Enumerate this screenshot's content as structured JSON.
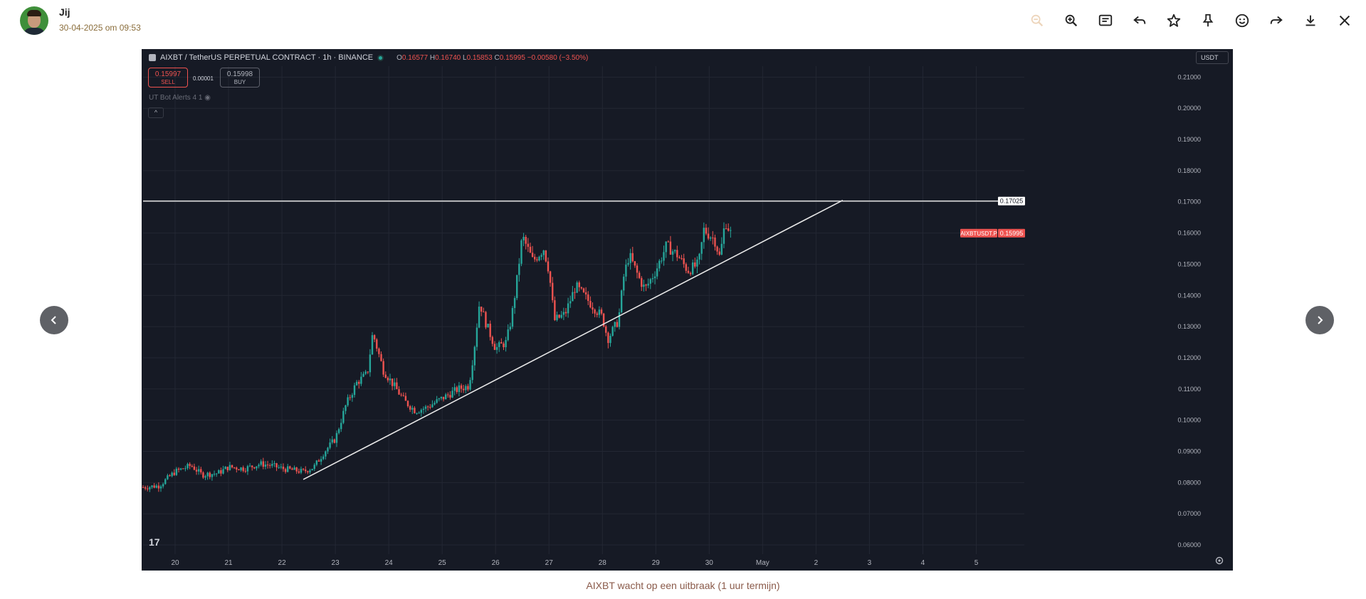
{
  "header": {
    "sender": "Jij",
    "timestamp": "30-04-2025 om 09:53"
  },
  "toolbar": {
    "icons": [
      "zoom-out-icon",
      "zoom-in-icon",
      "caption-icon",
      "reply-icon",
      "star-icon",
      "pin-icon",
      "emoji-icon",
      "forward-icon",
      "download-icon",
      "close-icon"
    ]
  },
  "caption": "AIXBT wacht op een uitbraak (1 uur termijn)",
  "tv": {
    "title": "AIXBT / TetherUS PERPETUAL CONTRACT · 1h · BINANCE",
    "ohlc": {
      "o_label": "O",
      "o": "0.16577",
      "h_label": "H",
      "h": "0.16740",
      "l_label": "L",
      "l": "0.15853",
      "c_label": "C",
      "c": "0.15995",
      "change": "−0.00580 (−3.50%)"
    },
    "sell_price": "0.15997",
    "sell_label": "SELL",
    "spread": "0.00001",
    "buy_price": "0.15998",
    "buy_label": "BUY",
    "indicator": "UT Bot Alerts 4 1",
    "currency": "USDT",
    "collapse": "^",
    "logo": "17"
  },
  "colors": {
    "up": "#26a69a",
    "down": "#ef5350",
    "background": "#161a25",
    "grid": "#232733",
    "drawing": "#e8e8e8"
  },
  "chart_data": {
    "type": "candlestick",
    "symbol": "AIXBTUSDT.P",
    "timeframe": "1h",
    "x_ticks": [
      "20",
      "21",
      "22",
      "23",
      "24",
      "25",
      "26",
      "27",
      "28",
      "29",
      "30",
      "May",
      "2",
      "3",
      "4",
      "5"
    ],
    "y_ticks": [
      "0.06000",
      "0.07000",
      "0.08000",
      "0.09000",
      "0.10000",
      "0.11000",
      "0.12000",
      "0.13000",
      "0.14000",
      "0.15000",
      "0.16000",
      "0.17000",
      "0.18000",
      "0.19000",
      "0.20000",
      "0.21000"
    ],
    "ylim": [
      0.0575,
      0.2135
    ],
    "x_range_days": [
      19.4,
      5.9
    ],
    "horizontal_line": {
      "value": 0.17025,
      "label": "0.17025"
    },
    "last_price": {
      "value": 0.15995,
      "label": "0.15995",
      "symbol_label": "AIXBTUSDT.P"
    },
    "trendline": [
      {
        "day": 22.4,
        "price": 0.081
      },
      {
        "day": 2.5,
        "price": 0.1705
      }
    ],
    "path_points": [
      [
        19.4,
        0.0785
      ],
      [
        19.7,
        0.079
      ],
      [
        20.0,
        0.0835
      ],
      [
        20.3,
        0.0855
      ],
      [
        20.5,
        0.0825
      ],
      [
        20.8,
        0.083
      ],
      [
        21.0,
        0.085
      ],
      [
        21.3,
        0.0845
      ],
      [
        21.6,
        0.086
      ],
      [
        21.8,
        0.0855
      ],
      [
        22.0,
        0.0845
      ],
      [
        22.2,
        0.084
      ],
      [
        22.4,
        0.0835
      ],
      [
        22.6,
        0.085
      ],
      [
        22.8,
        0.09
      ],
      [
        23.0,
        0.094
      ],
      [
        23.2,
        0.105
      ],
      [
        23.4,
        0.112
      ],
      [
        23.6,
        0.115
      ],
      [
        23.7,
        0.128
      ],
      [
        23.9,
        0.116
      ],
      [
        24.1,
        0.111
      ],
      [
        24.3,
        0.106
      ],
      [
        24.5,
        0.103
      ],
      [
        24.7,
        0.104
      ],
      [
        24.9,
        0.106
      ],
      [
        25.1,
        0.108
      ],
      [
        25.3,
        0.11
      ],
      [
        25.5,
        0.111
      ],
      [
        25.6,
        0.123
      ],
      [
        25.7,
        0.138
      ],
      [
        25.8,
        0.132
      ],
      [
        26.0,
        0.123
      ],
      [
        26.2,
        0.125
      ],
      [
        26.3,
        0.133
      ],
      [
        26.4,
        0.145
      ],
      [
        26.5,
        0.159
      ],
      [
        26.7,
        0.151
      ],
      [
        26.9,
        0.155
      ],
      [
        27.0,
        0.148
      ],
      [
        27.1,
        0.132
      ],
      [
        27.3,
        0.134
      ],
      [
        27.5,
        0.143
      ],
      [
        27.7,
        0.139
      ],
      [
        27.9,
        0.135
      ],
      [
        28.0,
        0.133
      ],
      [
        28.1,
        0.126
      ],
      [
        28.3,
        0.132
      ],
      [
        28.4,
        0.146
      ],
      [
        28.5,
        0.153
      ],
      [
        28.7,
        0.145
      ],
      [
        28.8,
        0.142
      ],
      [
        29.0,
        0.148
      ],
      [
        29.2,
        0.156
      ],
      [
        29.4,
        0.153
      ],
      [
        29.6,
        0.148
      ],
      [
        29.8,
        0.15
      ],
      [
        29.9,
        0.161
      ],
      [
        30.1,
        0.158
      ],
      [
        30.2,
        0.152
      ],
      [
        30.3,
        0.164
      ],
      [
        30.4,
        0.16
      ]
    ]
  }
}
